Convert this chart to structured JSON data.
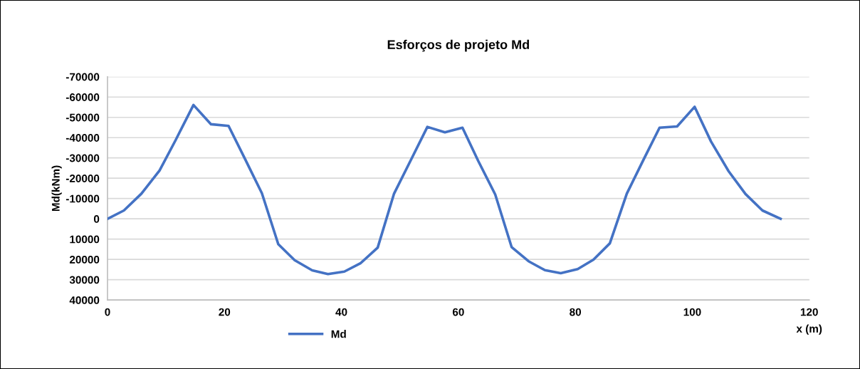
{
  "chart_data": {
    "type": "line",
    "title": "Esforços de projeto Md",
    "xlabel": "x (m)",
    "ylabel": "Md(kNm)",
    "x": [
      0,
      2.8,
      5.8,
      8.9,
      11.6,
      14.7,
      17.7,
      20.7,
      23.5,
      26.4,
      29.2,
      32,
      35,
      37.7,
      40.5,
      43.3,
      46.2,
      49,
      51.9,
      54.7,
      57.7,
      60.7,
      63.4,
      66.3,
      69.1,
      72,
      74.8,
      77.5,
      80.4,
      83.1,
      85.9,
      88.8,
      91.6,
      94.4,
      97.4,
      100.4,
      103.2,
      106.2,
      109.1,
      112,
      115.1
    ],
    "series": [
      {
        "name": "Md",
        "color": "#4472c4",
        "values": [
          0,
          -4100,
          -12400,
          -23800,
          -38500,
          -56100,
          -46600,
          -45800,
          -29600,
          -12600,
          12500,
          20400,
          25400,
          27200,
          26000,
          21800,
          14200,
          -12400,
          -29100,
          -45300,
          -42600,
          -44900,
          -28500,
          -12000,
          13900,
          20900,
          25300,
          26800,
          24800,
          20100,
          12100,
          -12400,
          -28800,
          -44900,
          -45500,
          -55200,
          -38100,
          -23500,
          -12200,
          -4100,
          0
        ]
      }
    ],
    "xlim": [
      0,
      120
    ],
    "xticks": [
      0,
      20,
      40,
      60,
      80,
      100,
      120
    ],
    "ylim": [
      40000,
      -70000
    ],
    "yticks": [
      -70000,
      -60000,
      -50000,
      -40000,
      -30000,
      -20000,
      -10000,
      0,
      10000,
      20000,
      30000,
      40000
    ],
    "grid": "y",
    "legend": "bottom",
    "marker": "none",
    "line_style": "solid"
  }
}
